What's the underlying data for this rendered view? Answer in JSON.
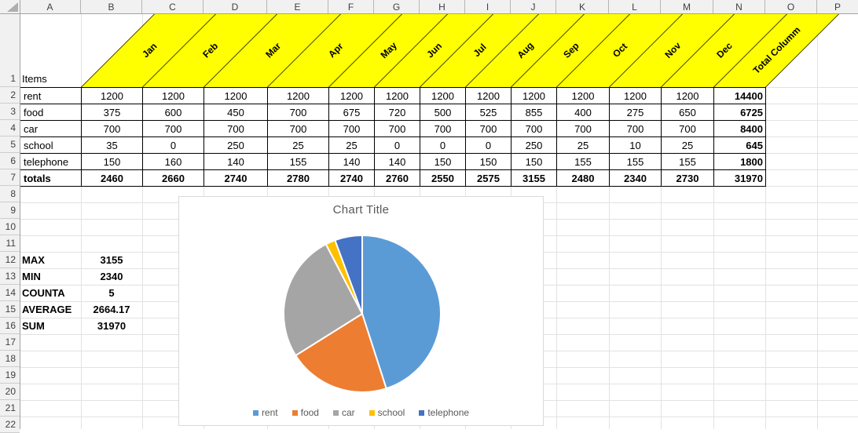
{
  "sheet": {
    "column_headers": [
      "A",
      "B",
      "C",
      "D",
      "E",
      "F",
      "G",
      "H",
      "I",
      "J",
      "K",
      "L",
      "M",
      "N",
      "O",
      "P"
    ],
    "row_count": 22,
    "items_header": "Items",
    "months": [
      "Jan",
      "Feb",
      "Mar",
      "Apr",
      "May",
      "Jun",
      "Jul",
      "Aug",
      "Sep",
      "Oct",
      "Nov",
      "Dec"
    ],
    "total_header": "Total Columm",
    "header_fill": "#FFFF00",
    "rows": [
      {
        "label": "rent",
        "values": [
          1200,
          1200,
          1200,
          1200,
          1200,
          1200,
          1200,
          1200,
          1200,
          1200,
          1200,
          1200
        ],
        "total": 14400
      },
      {
        "label": "food",
        "values": [
          375,
          600,
          450,
          700,
          675,
          720,
          500,
          525,
          855,
          400,
          275,
          650
        ],
        "total": 6725
      },
      {
        "label": "car",
        "values": [
          700,
          700,
          700,
          700,
          700,
          700,
          700,
          700,
          700,
          700,
          700,
          700
        ],
        "total": 8400
      },
      {
        "label": "school",
        "values": [
          35,
          0,
          250,
          25,
          25,
          0,
          0,
          0,
          250,
          25,
          10,
          25
        ],
        "total": 645
      },
      {
        "label": "telephone",
        "values": [
          150,
          160,
          140,
          155,
          140,
          140,
          150,
          150,
          150,
          155,
          155,
          155
        ],
        "total": 1800
      }
    ],
    "totals_row": {
      "label": "totals",
      "values": [
        2460,
        2660,
        2740,
        2780,
        2740,
        2760,
        2550,
        2575,
        3155,
        2480,
        2340,
        2730
      ],
      "total": 31970
    },
    "stats": [
      {
        "label": "MAX",
        "value": "3155"
      },
      {
        "label": "MIN",
        "value": "2340"
      },
      {
        "label": "COUNTA",
        "value": "5"
      },
      {
        "label": "AVERAGE",
        "value": "2664.17"
      },
      {
        "label": "SUM",
        "value": "31970"
      }
    ]
  },
  "chart_data": {
    "type": "pie",
    "title": "Chart Title",
    "categories": [
      "rent",
      "food",
      "car",
      "school",
      "telephone"
    ],
    "values": [
      14400,
      6725,
      8400,
      645,
      1800
    ],
    "colors": [
      "#5B9BD5",
      "#ED7D31",
      "#A5A5A5",
      "#FFC000",
      "#4472C4"
    ],
    "legend_position": "bottom",
    "start_angle_deg": 0,
    "direction": "clockwise"
  }
}
